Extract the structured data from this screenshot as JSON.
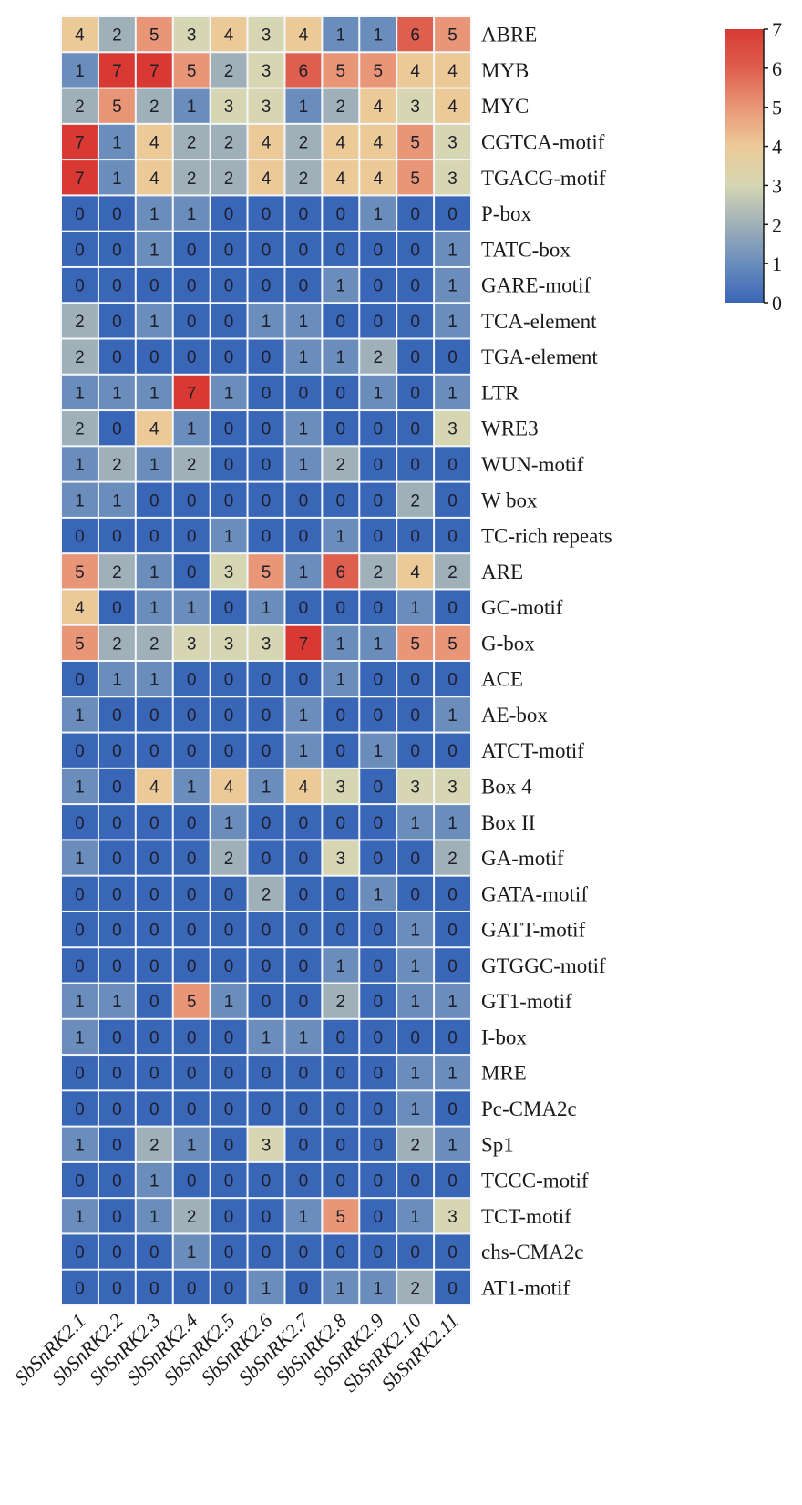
{
  "chart_data": {
    "type": "heatmap",
    "title": "",
    "columns": [
      "SbSnRK2.1",
      "SbSnRK2.2",
      "SbSnRK2.3",
      "SbSnRK2.4",
      "SbSnRK2.5",
      "SbSnRK2.6",
      "SbSnRK2.7",
      "SbSnRK2.8",
      "SbSnRK2.9",
      "SbSnRK2.10",
      "SbSnRK2.11"
    ],
    "rows": [
      "ABRE",
      "MYB",
      "MYC",
      "CGTCA-motif",
      "TGACG-motif",
      "P-box",
      "TATC-box",
      "GARE-motif",
      "TCA-element",
      "TGA-element",
      "LTR",
      "WRE3",
      "WUN-motif",
      "W box",
      "TC-rich repeats",
      "ARE",
      "GC-motif",
      "G-box",
      "ACE",
      "AE-box",
      "ATCT-motif",
      "Box 4",
      "Box II",
      "GA-motif",
      "GATA-motif",
      "GATT-motif",
      "GTGGC-motif",
      "GT1-motif",
      "I-box",
      "MRE",
      "Pc-CMA2c",
      "Sp1",
      "TCCC-motif",
      "TCT-motif",
      "chs-CMA2c",
      "AT1-motif"
    ],
    "values": [
      [
        4,
        2,
        5,
        3,
        4,
        3,
        4,
        1,
        1,
        6,
        5
      ],
      [
        1,
        7,
        7,
        5,
        2,
        3,
        6,
        5,
        5,
        4,
        4
      ],
      [
        2,
        5,
        2,
        1,
        3,
        3,
        1,
        2,
        4,
        3,
        4
      ],
      [
        7,
        1,
        4,
        2,
        2,
        4,
        2,
        4,
        4,
        5,
        3
      ],
      [
        7,
        1,
        4,
        2,
        2,
        4,
        2,
        4,
        4,
        5,
        3
      ],
      [
        0,
        0,
        1,
        1,
        0,
        0,
        0,
        0,
        1,
        0,
        0
      ],
      [
        0,
        0,
        1,
        0,
        0,
        0,
        0,
        0,
        0,
        0,
        1
      ],
      [
        0,
        0,
        0,
        0,
        0,
        0,
        0,
        1,
        0,
        0,
        1
      ],
      [
        2,
        0,
        1,
        0,
        0,
        1,
        1,
        0,
        0,
        0,
        1
      ],
      [
        2,
        0,
        0,
        0,
        0,
        0,
        1,
        1,
        2,
        0,
        0
      ],
      [
        1,
        1,
        1,
        7,
        1,
        0,
        0,
        0,
        1,
        0,
        1
      ],
      [
        2,
        0,
        4,
        1,
        0,
        0,
        1,
        0,
        0,
        0,
        3
      ],
      [
        1,
        2,
        1,
        2,
        0,
        0,
        1,
        2,
        0,
        0,
        0
      ],
      [
        1,
        1,
        0,
        0,
        0,
        0,
        0,
        0,
        0,
        2,
        0
      ],
      [
        0,
        0,
        0,
        0,
        1,
        0,
        0,
        1,
        0,
        0,
        0
      ],
      [
        5,
        2,
        1,
        0,
        3,
        5,
        1,
        6,
        2,
        4,
        2
      ],
      [
        4,
        0,
        1,
        1,
        0,
        1,
        0,
        0,
        0,
        1,
        0
      ],
      [
        5,
        2,
        2,
        3,
        3,
        3,
        7,
        1,
        1,
        5,
        5
      ],
      [
        0,
        1,
        1,
        0,
        0,
        0,
        0,
        1,
        0,
        0,
        0
      ],
      [
        1,
        0,
        0,
        0,
        0,
        0,
        1,
        0,
        0,
        0,
        1
      ],
      [
        0,
        0,
        0,
        0,
        0,
        0,
        1,
        0,
        1,
        0,
        0
      ],
      [
        1,
        0,
        4,
        1,
        4,
        1,
        4,
        3,
        0,
        3,
        3
      ],
      [
        0,
        0,
        0,
        0,
        1,
        0,
        0,
        0,
        0,
        1,
        1
      ],
      [
        1,
        0,
        0,
        0,
        2,
        0,
        0,
        3,
        0,
        0,
        2
      ],
      [
        0,
        0,
        0,
        0,
        0,
        2,
        0,
        0,
        1,
        0,
        0
      ],
      [
        0,
        0,
        0,
        0,
        0,
        0,
        0,
        0,
        0,
        1,
        0
      ],
      [
        0,
        0,
        0,
        0,
        0,
        0,
        0,
        1,
        0,
        1,
        0
      ],
      [
        1,
        1,
        0,
        5,
        1,
        0,
        0,
        2,
        0,
        1,
        1
      ],
      [
        1,
        0,
        0,
        0,
        0,
        1,
        1,
        0,
        0,
        0,
        0
      ],
      [
        0,
        0,
        0,
        0,
        0,
        0,
        0,
        0,
        0,
        1,
        1
      ],
      [
        0,
        0,
        0,
        0,
        0,
        0,
        0,
        0,
        0,
        1,
        0
      ],
      [
        1,
        0,
        2,
        1,
        0,
        3,
        0,
        0,
        0,
        2,
        1
      ],
      [
        0,
        0,
        1,
        0,
        0,
        0,
        0,
        0,
        0,
        0,
        0
      ],
      [
        1,
        0,
        1,
        2,
        0,
        0,
        1,
        5,
        0,
        1,
        3
      ],
      [
        0,
        0,
        0,
        1,
        0,
        0,
        0,
        0,
        0,
        0,
        0
      ],
      [
        0,
        0,
        0,
        0,
        0,
        1,
        0,
        1,
        1,
        2,
        0
      ]
    ],
    "colorbar": {
      "range": [
        0,
        7
      ],
      "ticks": [
        "0",
        "1",
        "2",
        "3",
        "4",
        "5",
        "6",
        "7"
      ],
      "colors": [
        "#3a66b8",
        "#6a8dbc",
        "#9fb0b8",
        "#d6d6b2",
        "#ecca98",
        "#e99678",
        "#de5f4e",
        "#d83a33"
      ],
      "placement": "top-right"
    }
  }
}
